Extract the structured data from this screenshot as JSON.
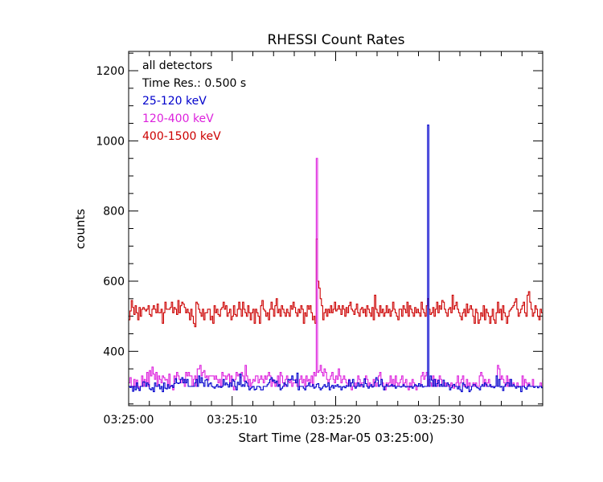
{
  "chart_data": {
    "type": "line",
    "title": "RHESSI Count Rates",
    "xlabel": "Start Time (28-Mar-05 03:25:00)",
    "ylabel": "counts",
    "xlim": [
      0,
      40
    ],
    "ylim": [
      245,
      1255
    ],
    "x_ticks": [
      {
        "value": 0,
        "label": "03:25:00"
      },
      {
        "value": 10,
        "label": "03:25:10"
      },
      {
        "value": 20,
        "label": "03:25:20"
      },
      {
        "value": 30,
        "label": "03:25:30"
      }
    ],
    "y_ticks": [
      400,
      600,
      800,
      1000,
      1200
    ],
    "annotations": [
      "all detectors",
      "Time Res.: 0.500 s"
    ],
    "time_resolution_s": 0.5,
    "series": [
      {
        "name": "25-120 keV",
        "color": "#0000cc",
        "values": [
          300,
          297,
          300,
          286,
          300,
          290,
          310,
          295,
          288,
          300,
          300,
          313,
          312,
          300,
          310,
          305,
          293,
          290,
          296,
          285,
          310,
          300,
          300,
          305,
          293,
          300,
          285,
          310,
          295,
          293,
          305,
          295,
          300,
          303,
          297,
          308,
          322,
          310,
          308,
          310,
          320,
          325,
          310,
          320,
          310,
          320,
          300,
          300,
          300,
          300,
          300,
          310,
          320,
          300,
          330,
          310,
          325,
          310,
          300,
          318,
          320,
          300,
          307,
          310,
          300,
          298,
          295,
          300,
          305,
          298,
          300,
          297,
          300,
          320,
          304,
          310,
          305,
          298,
          310,
          300,
          320,
          315,
          300,
          290,
          312,
          305,
          335,
          300,
          305,
          300,
          315,
          310,
          300,
          290,
          295,
          298,
          300,
          290,
          292,
          300,
          300,
          298,
          290,
          290,
          300,
          300,
          300,
          305,
          310,
          320,
          325,
          315,
          318,
          310,
          315,
          300,
          305,
          290,
          295,
          300,
          310,
          305,
          300,
          320,
          318,
          320,
          330,
          318,
          318,
          310,
          338,
          290,
          300,
          300,
          300,
          295,
          290,
          300,
          302,
          310,
          300,
          300,
          305,
          295,
          298,
          306,
          308,
          296,
          290,
          295,
          300,
          305,
          298,
          300,
          310,
          290,
          298,
          303,
          295,
          302,
          300,
          305,
          298,
          300,
          290,
          298,
          300,
          296,
          302,
          300,
          318,
          300,
          310,
          320,
          300,
          295,
          300,
          310,
          300,
          305,
          305,
          298,
          322,
          308,
          300,
          295,
          300,
          305,
          298,
          300,
          312,
          325,
          318,
          300,
          305,
          320,
          300,
          290,
          300,
          305,
          300,
          300,
          302,
          305,
          300,
          302,
          295,
          300,
          300,
          300,
          298,
          300,
          305,
          300,
          298,
          300,
          300,
          298,
          300,
          295,
          300,
          305,
          302,
          300,
          308,
          300,
          305,
          298,
          300,
          300,
          300,
          1045,
          300,
          330,
          318,
          300,
          320,
          300,
          308,
          318,
          300,
          306,
          300,
          318,
          300,
          300,
          310,
          305,
          290,
          296,
          302,
          306,
          300,
          300,
          293,
          300,
          290,
          285,
          310,
          305,
          298,
          295,
          300,
          285,
          290,
          300,
          305,
          305,
          300,
          296,
          295,
          290,
          300,
          305,
          300,
          310,
          305,
          300,
          300,
          305,
          298,
          300,
          296,
          300,
          330,
          300,
          320,
          298,
          300,
          288,
          300,
          305,
          310,
          310,
          300,
          320,
          300,
          305,
          300,
          295,
          300,
          298,
          300,
          285,
          300,
          300,
          296,
          292,
          300,
          305,
          300,
          300,
          300,
          297,
          300,
          300,
          296,
          300,
          300,
          296,
          300,
          296,
          305,
          300,
          300,
          300,
          300,
          296,
          300,
          300,
          300,
          300,
          300,
          300,
          305,
          300,
          300,
          298,
          300,
          300,
          300,
          298
        ]
      },
      {
        "name": "120-400 keV",
        "color": "#dd22dd",
        "values": [
          310,
          325,
          300,
          298,
          320,
          300,
          318,
          300,
          290,
          300,
          330,
          300,
          320,
          300,
          340,
          300,
          345,
          330,
          355,
          335,
          320,
          340,
          300,
          330,
          320,
          310,
          330,
          325,
          318,
          320,
          300,
          335,
          300,
          300,
          290,
          330,
          320,
          340,
          330,
          320,
          310,
          318,
          320,
          300,
          340,
          330,
          340,
          330,
          330,
          300,
          320,
          330,
          300,
          350,
          350,
          360,
          330,
          340,
          345,
          325,
          330,
          318,
          330,
          330,
          330,
          330,
          320,
          330,
          320,
          310,
          320,
          300,
          340,
          330,
          330,
          320,
          330,
          335,
          310,
          330,
          300,
          290,
          320,
          340,
          330,
          335,
          325,
          340,
          330,
          315,
          360,
          330,
          300,
          320,
          300,
          310,
          320,
          315,
          330,
          330,
          310,
          320,
          330,
          320,
          310,
          330,
          320,
          330,
          340,
          330,
          300,
          320,
          310,
          300,
          310,
          330,
          300,
          340,
          330,
          310,
          300,
          320,
          330,
          315,
          310,
          320,
          300,
          310,
          310,
          320,
          300,
          300,
          320,
          330,
          310,
          320,
          300,
          330,
          315,
          320,
          310,
          330,
          300,
          340,
          330,
          950,
          340,
          345,
          360,
          340,
          330,
          350,
          340,
          320,
          310,
          320,
          330,
          340,
          320,
          310,
          330,
          320,
          350,
          330,
          310,
          320,
          330,
          320,
          310,
          300,
          320,
          310,
          290,
          300,
          310,
          300,
          310,
          330,
          320,
          300,
          310,
          310,
          320,
          330,
          320,
          300,
          310,
          300,
          300,
          320,
          310,
          300,
          310,
          330,
          340,
          320,
          310,
          300,
          290,
          310,
          300,
          310,
          330,
          300,
          320,
          300,
          330,
          310,
          300,
          310,
          320,
          330,
          300,
          310,
          320,
          300,
          290,
          310,
          300,
          320,
          310,
          300,
          290,
          300,
          300,
          300,
          330,
          340,
          320,
          330,
          340,
          300,
          320,
          310,
          300,
          330,
          300,
          320,
          300,
          310,
          330,
          320,
          300,
          300,
          310,
          300,
          310,
          300,
          300,
          310,
          300,
          295,
          300,
          310,
          330,
          300,
          310,
          320,
          330,
          300,
          300,
          320,
          300,
          310,
          300,
          300,
          310,
          300,
          310,
          300,
          300,
          330,
          340,
          330,
          300,
          320,
          300,
          310,
          320,
          300,
          300,
          300,
          300,
          300,
          330,
          360,
          350,
          320,
          330,
          320,
          310,
          300,
          330,
          300,
          320,
          300,
          300,
          310,
          300,
          300,
          310,
          300,
          300,
          300,
          330,
          300,
          320,
          310,
          300,
          310,
          300,
          300,
          320,
          300,
          300,
          300,
          300,
          300,
          310,
          300,
          320,
          300,
          300,
          300,
          300,
          300,
          310,
          300,
          300,
          300,
          300,
          300,
          300,
          300,
          300,
          300,
          300,
          300
        ]
      },
      {
        "name": "400-1500 keV",
        "color": "#cc0000",
        "values": [
          490,
          515,
          545,
          525,
          505,
          530,
          510,
          490,
          525,
          500,
          520,
          525,
          520,
          515,
          520,
          530,
          505,
          500,
          520,
          530,
          520,
          510,
          535,
          510,
          510,
          520,
          480,
          510,
          540,
          520,
          520,
          520,
          525,
          540,
          510,
          525,
          520,
          505,
          545,
          510,
          530,
          540,
          535,
          525,
          510,
          520,
          510,
          490,
          520,
          500,
          480,
          470,
          540,
          535,
          520,
          510,
          500,
          520,
          490,
          510,
          510,
          520,
          520,
          490,
          500,
          480,
          530,
          510,
          520,
          505,
          500,
          520,
          525,
          540,
          520,
          530,
          500,
          510,
          520,
          490,
          500,
          530,
          505,
          500,
          520,
          540,
          520,
          500,
          540,
          520,
          510,
          500,
          530,
          510,
          490,
          510,
          520,
          480,
          520,
          510,
          500,
          480,
          530,
          545,
          520,
          515,
          500,
          510,
          490,
          520,
          540,
          520,
          500,
          530,
          550,
          510,
          520,
          500,
          530,
          520,
          510,
          500,
          520,
          510,
          500,
          530,
          520,
          540,
          525,
          510,
          500,
          520,
          510,
          530,
          520,
          480,
          510,
          500,
          530,
          520,
          530,
          510,
          490,
          500,
          480,
          720,
          600,
          580,
          550,
          530,
          490,
          510,
          520,
          500,
          520,
          510,
          530,
          510,
          520,
          540,
          515,
          520,
          530,
          520,
          505,
          530,
          520,
          500,
          525,
          510,
          530,
          540,
          520,
          515,
          505,
          520,
          535,
          510,
          500,
          520,
          525,
          510,
          520,
          500,
          530,
          520,
          510,
          500,
          525,
          490,
          560,
          520,
          510,
          500,
          530,
          510,
          520,
          500,
          510,
          530,
          510,
          520,
          500,
          515,
          540,
          520,
          510,
          500,
          490,
          520,
          520,
          500,
          530,
          520,
          510,
          540,
          500,
          530,
          520,
          510,
          500,
          525,
          510,
          520,
          510,
          500,
          540,
          520,
          510,
          500,
          530,
          550,
          520,
          505,
          510,
          525,
          500,
          520,
          540,
          510,
          530,
          520,
          545,
          540,
          520,
          510,
          500,
          520,
          525,
          510,
          560,
          520,
          530,
          540,
          520,
          510,
          500,
          490,
          510,
          520,
          500,
          535,
          510,
          520,
          530,
          520,
          500,
          480,
          520,
          510,
          480,
          490,
          510,
          500,
          530,
          490,
          520,
          510,
          500,
          480,
          500,
          520,
          490,
          480,
          510,
          540,
          510,
          520,
          490,
          530,
          510,
          500,
          480,
          500,
          515,
          520,
          525,
          530,
          540,
          550,
          520,
          500,
          510,
          520,
          530,
          540,
          510,
          500,
          560,
          570,
          540,
          520,
          500,
          510,
          530,
          520,
          500,
          490,
          520,
          510,
          500,
          480,
          510,
          500,
          530,
          520,
          510,
          505,
          520,
          490,
          500,
          480,
          510,
          520,
          510,
          500,
          490,
          470,
          500,
          510,
          530,
          500,
          490,
          450
        ]
      }
    ]
  }
}
